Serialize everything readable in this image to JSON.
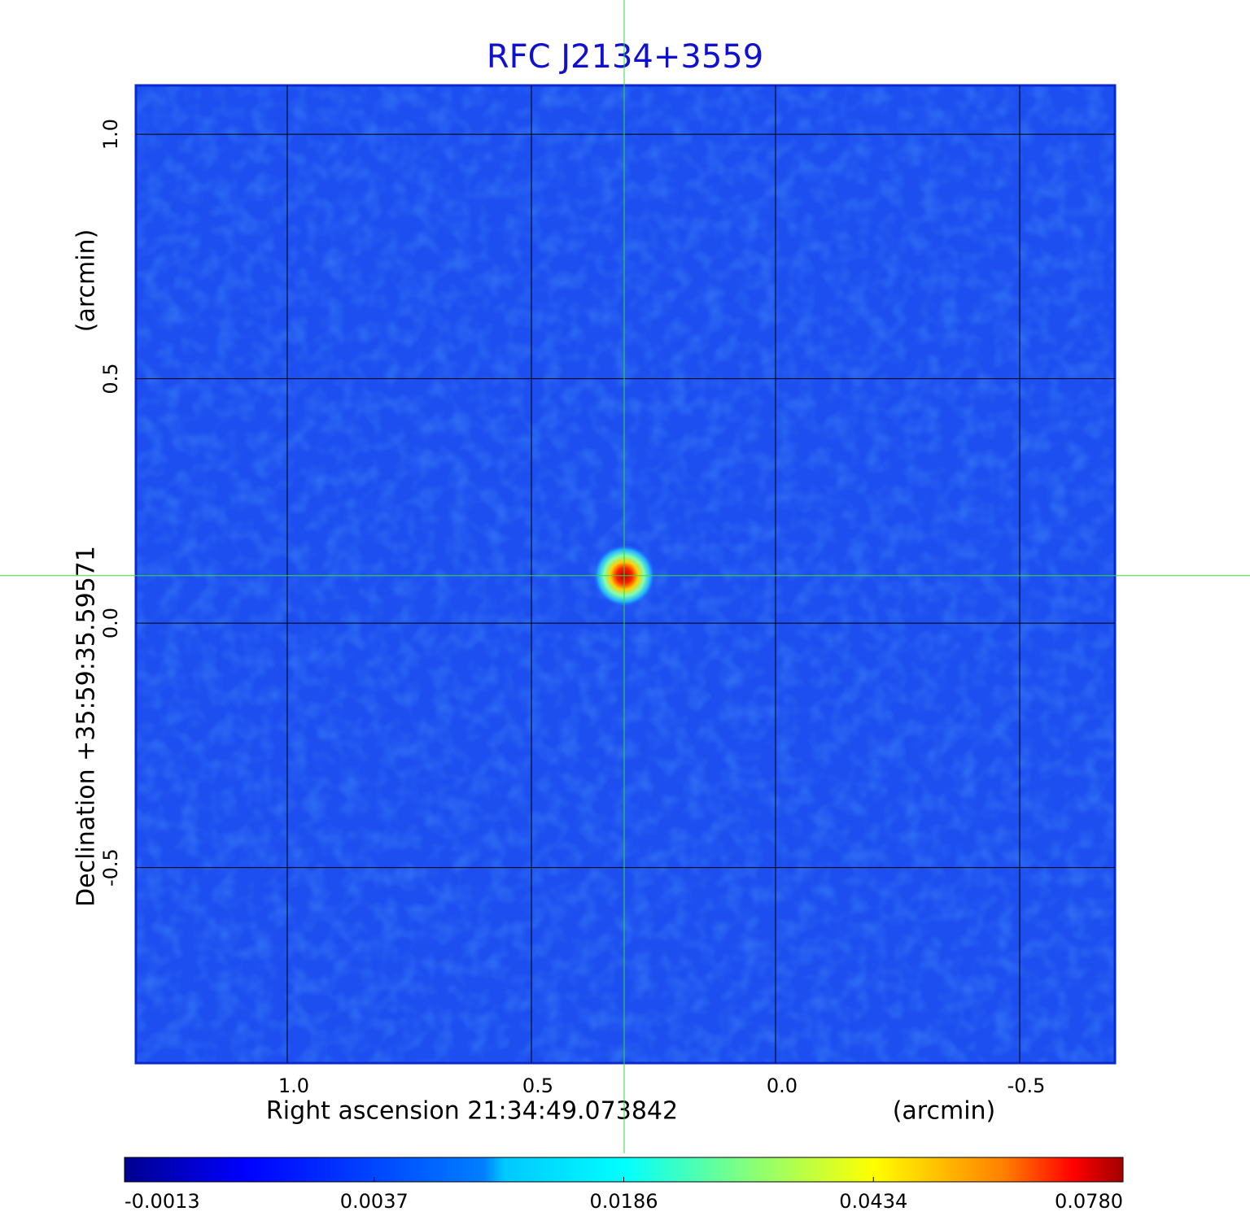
{
  "chart_data": {
    "type": "image",
    "title": "RFC J2134+3559",
    "x_label": "Right ascension  21:34:49.073842",
    "x_unit": "(arcmin)",
    "y_label": "Declination  +35:59:35.59571",
    "y_unit": "(arcmin)",
    "xlim": [
      1.31,
      -0.695
    ],
    "ylim": [
      -0.9,
      1.1
    ],
    "xticks": [
      {
        "value": 1,
        "label": "1.0"
      },
      0.5,
      {
        "value": 0,
        "label": "0.0"
      },
      -0.5
    ],
    "yticks": [
      {
        "value": 1,
        "label": "1.0"
      },
      0.5,
      {
        "value": 0,
        "label": "0.0"
      },
      -0.5
    ],
    "grid": true,
    "crosshair": {
      "x": 0.31,
      "y": 0.097,
      "color": "#33dd33"
    },
    "source": {
      "x": 0.31,
      "y": 0.097,
      "peak": 0.078
    },
    "colorbar": {
      "colormap": "jet",
      "lim": [
        -0.0013,
        0.078
      ],
      "ticks": [
        -0.0013,
        0.0037,
        0.0186,
        0.0434,
        {
          "value": 0.078,
          "label": "0.0780"
        }
      ]
    }
  }
}
